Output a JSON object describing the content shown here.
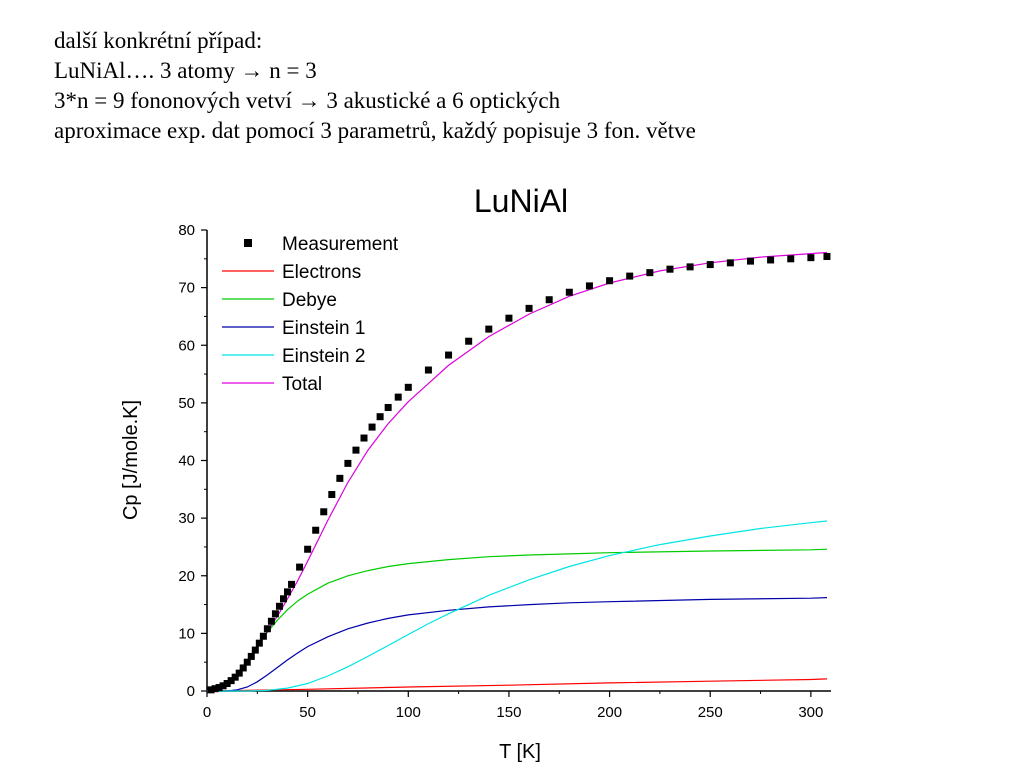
{
  "slide": {
    "lines": [
      "další konkrétní případ:",
      "LuNiAl…. 3 atomy → n = 3",
      "3*n = 9 fononových vetví → 3 akustické a 6 optických",
      "aproximace exp. dat pomocí 3 parametrů, každý popisuje 3 fon. větve"
    ]
  },
  "chart_data": {
    "type": "line",
    "title": "LuNiAl",
    "xlabel": "T [K]",
    "ylabel": "Cp [J/mole.K]",
    "xlim": [
      0,
      310
    ],
    "ylim": [
      0,
      80
    ],
    "xticks": [
      0,
      50,
      100,
      150,
      200,
      250,
      300
    ],
    "yticks": [
      0,
      10,
      20,
      30,
      40,
      50,
      60,
      70,
      80
    ],
    "grid": false,
    "legend_position": "top-left",
    "series": [
      {
        "name": "Measurement",
        "style": "markers",
        "marker": "square",
        "color": "#000000",
        "x": [
          2,
          4,
          6,
          8,
          10,
          12,
          14,
          16,
          18,
          20,
          22,
          24,
          26,
          28,
          30,
          32,
          34,
          36,
          38,
          40,
          42,
          46,
          50,
          54,
          58,
          62,
          66,
          70,
          74,
          78,
          82,
          86,
          90,
          95,
          100,
          110,
          120,
          130,
          140,
          150,
          160,
          170,
          180,
          190,
          200,
          210,
          220,
          230,
          240,
          250,
          260,
          270,
          280,
          290,
          300,
          308
        ],
        "y": [
          0.2,
          0.4,
          0.6,
          0.9,
          1.3,
          1.8,
          2.4,
          3.1,
          4.0,
          5.0,
          6.0,
          7.1,
          8.3,
          9.5,
          10.8,
          12.1,
          13.4,
          14.7,
          16.0,
          17.2,
          18.5,
          21.5,
          24.6,
          27.9,
          31.1,
          34.1,
          36.9,
          39.5,
          41.8,
          43.9,
          45.8,
          47.6,
          49.2,
          51.0,
          52.7,
          55.7,
          58.3,
          60.7,
          62.8,
          64.7,
          66.4,
          67.9,
          69.2,
          70.3,
          71.2,
          72.0,
          72.6,
          73.2,
          73.6,
          74.0,
          74.3,
          74.6,
          74.8,
          75.0,
          75.2,
          75.4
        ]
      },
      {
        "name": "Electrons",
        "style": "line",
        "color": "#ff0000",
        "x": [
          0,
          50,
          100,
          150,
          200,
          250,
          300,
          308
        ],
        "y": [
          0,
          0.3,
          0.7,
          1.0,
          1.4,
          1.7,
          2.0,
          2.1
        ]
      },
      {
        "name": "Debye",
        "style": "line",
        "color": "#00cc00",
        "x": [
          0,
          5,
          10,
          15,
          20,
          25,
          30,
          35,
          40,
          45,
          50,
          60,
          70,
          80,
          90,
          100,
          120,
          140,
          160,
          180,
          200,
          250,
          300,
          308
        ],
        "y": [
          0,
          0.2,
          1.1,
          2.9,
          5.3,
          7.8,
          10.2,
          12.3,
          14.1,
          15.6,
          16.8,
          18.7,
          20.0,
          20.9,
          21.6,
          22.1,
          22.8,
          23.3,
          23.6,
          23.8,
          24.0,
          24.3,
          24.5,
          24.6
        ]
      },
      {
        "name": "Einstein 1",
        "style": "line",
        "color": "#0000aa",
        "x": [
          0,
          10,
          15,
          20,
          25,
          30,
          35,
          40,
          45,
          50,
          60,
          70,
          80,
          90,
          100,
          120,
          140,
          160,
          180,
          200,
          250,
          300,
          308
        ],
        "y": [
          0,
          0.0,
          0.2,
          0.7,
          1.6,
          2.8,
          4.1,
          5.4,
          6.6,
          7.7,
          9.4,
          10.8,
          11.8,
          12.6,
          13.2,
          14.0,
          14.6,
          15.0,
          15.3,
          15.5,
          15.9,
          16.1,
          16.2
        ]
      },
      {
        "name": "Einstein 2",
        "style": "line",
        "color": "#00e5e5",
        "x": [
          0,
          20,
          30,
          40,
          50,
          60,
          70,
          80,
          90,
          100,
          110,
          120,
          140,
          160,
          180,
          200,
          225,
          250,
          275,
          300,
          308
        ],
        "y": [
          0,
          0.0,
          0.1,
          0.5,
          1.3,
          2.6,
          4.2,
          6.0,
          7.9,
          9.8,
          11.7,
          13.4,
          16.6,
          19.3,
          21.6,
          23.5,
          25.4,
          26.9,
          28.2,
          29.2,
          29.5
        ]
      },
      {
        "name": "Total",
        "style": "line",
        "color": "#dd00dd",
        "x": [
          0,
          5,
          10,
          15,
          20,
          25,
          30,
          35,
          40,
          45,
          50,
          60,
          70,
          80,
          90,
          100,
          120,
          140,
          160,
          180,
          200,
          225,
          250,
          275,
          300,
          308
        ],
        "y": [
          0,
          0.4,
          1.2,
          3.0,
          5.3,
          7.8,
          10.3,
          13.0,
          16.0,
          19.1,
          22.5,
          29.6,
          36.2,
          41.8,
          46.4,
          50.2,
          56.5,
          61.5,
          65.4,
          68.5,
          70.8,
          72.9,
          74.3,
          75.3,
          75.9,
          76.1
        ]
      }
    ]
  }
}
